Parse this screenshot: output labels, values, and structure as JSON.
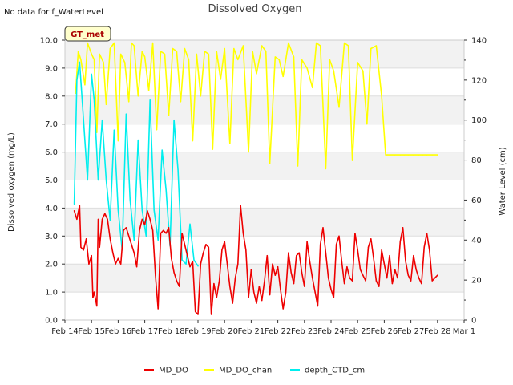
{
  "chart_data": {
    "type": "line",
    "title": "Dissolved Oxygen",
    "note": "No data for f_WaterLevel",
    "badge": "GT_met",
    "xlabel": "",
    "ylabel": "Dissolved oxygen (mg/L)",
    "y2label": "Water Level (cm)",
    "x_ticks": [
      "Feb 14",
      "Feb 15",
      "Feb 16",
      "Feb 17",
      "Feb 18",
      "Feb 19",
      "Feb 20",
      "Feb 21",
      "Feb 22",
      "Feb 23",
      "Feb 24",
      "Feb 25",
      "Feb 26",
      "Feb 27",
      "Feb 28",
      "Mar 1"
    ],
    "y_ticks": [
      "0.0",
      "1.0",
      "2.0",
      "3.0",
      "4.0",
      "5.0",
      "6.0",
      "7.0",
      "8.0",
      "9.0",
      "10.0"
    ],
    "y2_ticks": [
      "0",
      "20",
      "40",
      "60",
      "80",
      "100",
      "120",
      "140"
    ],
    "xlim": [
      0,
      15
    ],
    "ylim": [
      0,
      10
    ],
    "y2lim": [
      0,
      140
    ],
    "grid": true,
    "legend_position": "bottom",
    "colors": {
      "MD_DO": "#ee0000",
      "MD_DO_chan": "#ffff00",
      "depth_CTD_cm": "#00eeee",
      "band": "#f2f2f2"
    },
    "series": [
      {
        "name": "MD_DO",
        "axis": "left",
        "x": [
          0.35,
          0.45,
          0.55,
          0.6,
          0.7,
          0.8,
          0.9,
          1.0,
          1.05,
          1.1,
          1.2,
          1.25,
          1.3,
          1.4,
          1.5,
          1.6,
          1.7,
          1.8,
          1.9,
          2.0,
          2.1,
          2.2,
          2.3,
          2.4,
          2.5,
          2.6,
          2.7,
          2.8,
          2.9,
          3.0,
          3.1,
          3.2,
          3.3,
          3.4,
          3.5,
          3.6,
          3.7,
          3.8,
          3.9,
          4.0,
          4.1,
          4.2,
          4.3,
          4.4,
          4.5,
          4.6,
          4.7,
          4.8,
          4.9,
          5.0,
          5.1,
          5.2,
          5.3,
          5.4,
          5.5,
          5.6,
          5.7,
          5.8,
          5.9,
          6.0,
          6.1,
          6.2,
          6.3,
          6.4,
          6.5,
          6.6,
          6.7,
          6.8,
          6.9,
          7.0,
          7.1,
          7.2,
          7.3,
          7.4,
          7.5,
          7.6,
          7.7,
          7.8,
          7.9,
          8.0,
          8.1,
          8.2,
          8.3,
          8.4,
          8.5,
          8.6,
          8.7,
          8.8,
          8.9,
          9.0,
          9.1,
          9.2,
          9.3,
          9.4,
          9.5,
          9.6,
          9.7,
          9.8,
          9.9,
          10.0,
          10.1,
          10.2,
          10.3,
          10.4,
          10.5,
          10.6,
          10.7,
          10.8,
          10.9,
          11.0,
          11.1,
          11.2,
          11.3,
          11.4,
          11.5,
          11.6,
          11.7,
          11.8,
          11.9,
          12.0,
          12.1,
          12.2,
          12.3,
          12.4,
          12.5,
          12.6,
          12.7,
          12.8,
          12.9,
          13.0,
          13.1,
          13.2,
          13.3,
          13.4,
          13.5,
          13.6,
          13.7,
          13.8,
          13.9,
          14.0
        ],
        "values": [
          3.9,
          3.6,
          4.1,
          2.6,
          2.5,
          2.9,
          2.0,
          2.3,
          0.8,
          1.0,
          0.5,
          3.6,
          2.6,
          3.6,
          3.8,
          3.6,
          2.9,
          2.4,
          2.0,
          2.2,
          2.0,
          3.2,
          3.3,
          3.0,
          2.7,
          2.4,
          1.9,
          3.2,
          3.6,
          3.4,
          3.9,
          3.6,
          3.2,
          1.6,
          0.4,
          3.1,
          3.2,
          3.1,
          3.3,
          2.2,
          1.7,
          1.4,
          1.2,
          3.1,
          2.7,
          2.3,
          1.9,
          2.1,
          0.3,
          0.2,
          2.0,
          2.4,
          2.7,
          2.6,
          0.2,
          1.3,
          0.8,
          1.4,
          2.5,
          2.8,
          2.0,
          1.2,
          0.6,
          1.5,
          2.0,
          4.1,
          3.1,
          2.5,
          0.8,
          1.8,
          1.0,
          0.6,
          1.2,
          0.7,
          1.4,
          2.3,
          0.9,
          2.0,
          1.6,
          1.9,
          1.1,
          0.4,
          1.0,
          2.4,
          1.7,
          1.3,
          2.3,
          2.4,
          1.7,
          1.2,
          2.8,
          2.1,
          1.5,
          1.0,
          0.5,
          2.7,
          3.3,
          2.4,
          1.5,
          1.1,
          0.8,
          2.7,
          3.0,
          2.1,
          1.3,
          1.9,
          1.5,
          1.4,
          3.1,
          2.5,
          1.8,
          1.6,
          1.4,
          2.6,
          2.9,
          2.2,
          1.4,
          1.2,
          2.5,
          2.0,
          1.5,
          2.3,
          1.3,
          1.8,
          1.5,
          2.8,
          3.3,
          2.1,
          1.6,
          1.4,
          2.3,
          1.8,
          1.5,
          1.3,
          2.6,
          3.1,
          2.5,
          1.4,
          1.5,
          1.6
        ],
        "note_values": "approximate"
      },
      {
        "name": "MD_DO_chan",
        "axis": "left",
        "x": [
          0.4,
          0.5,
          0.6,
          0.75,
          0.85,
          1.0,
          1.1,
          1.2,
          1.3,
          1.45,
          1.55,
          1.7,
          1.85,
          2.0,
          2.1,
          2.25,
          2.4,
          2.5,
          2.6,
          2.75,
          2.9,
          3.0,
          3.15,
          3.3,
          3.45,
          3.6,
          3.75,
          3.9,
          4.05,
          4.2,
          4.35,
          4.5,
          4.65,
          4.8,
          4.95,
          5.1,
          5.25,
          5.4,
          5.55,
          5.7,
          5.85,
          6.0,
          6.2,
          6.35,
          6.5,
          6.7,
          6.9,
          7.05,
          7.2,
          7.4,
          7.55,
          7.7,
          7.9,
          8.05,
          8.2,
          8.4,
          8.6,
          8.75,
          8.9,
          9.1,
          9.3,
          9.45,
          9.6,
          9.8,
          9.95,
          10.1,
          10.3,
          10.5,
          10.65,
          10.8,
          11.0,
          11.2,
          11.35,
          11.5,
          11.7,
          11.9,
          12.05,
          12.2,
          12.4,
          12.6,
          12.75,
          12.9,
          13.1,
          13.3,
          13.45,
          13.6,
          13.8,
          14.0
        ],
        "values": [
          8.1,
          9.6,
          9.3,
          8.4,
          9.9,
          9.5,
          9.3,
          6.7,
          9.5,
          9.2,
          7.7,
          9.7,
          9.9,
          6.4,
          9.5,
          9.2,
          7.8,
          9.9,
          9.8,
          8.0,
          9.6,
          9.4,
          8.2,
          9.9,
          6.8,
          9.6,
          9.5,
          7.3,
          9.7,
          9.6,
          7.8,
          9.7,
          9.3,
          6.4,
          9.5,
          8.0,
          9.6,
          9.5,
          6.1,
          9.6,
          8.6,
          9.7,
          6.3,
          9.7,
          9.3,
          9.8,
          6.0,
          9.6,
          8.8,
          9.8,
          9.6,
          5.6,
          9.4,
          9.3,
          8.7,
          9.9,
          9.4,
          5.5,
          9.3,
          9.0,
          8.3,
          9.9,
          9.8,
          5.4,
          9.3,
          8.9,
          7.6,
          9.9,
          9.8,
          5.7,
          9.2,
          8.9,
          7.0,
          9.7,
          9.8,
          8.0,
          5.9,
          5.9,
          5.9,
          5.9,
          5.9,
          5.9,
          5.9,
          5.9,
          5.9,
          5.9,
          5.9,
          5.9
        ],
        "note_values": "approximate"
      },
      {
        "name": "depth_CTD_cm",
        "axis": "right",
        "x": [
          0.35,
          0.45,
          0.55,
          0.7,
          0.85,
          1.0,
          1.1,
          1.25,
          1.4,
          1.55,
          1.7,
          1.85,
          2.0,
          2.15,
          2.3,
          2.45,
          2.6,
          2.75,
          2.9,
          3.05,
          3.2,
          3.35,
          3.5,
          3.65,
          3.8,
          3.95,
          4.1,
          4.25,
          4.4,
          4.55,
          4.7,
          4.85,
          5.0
        ],
        "values": [
          58,
          120,
          129,
          100,
          70,
          123,
          110,
          70,
          100,
          70,
          50,
          95,
          55,
          35,
          103,
          60,
          40,
          90,
          55,
          42,
          110,
          55,
          40,
          85,
          65,
          37,
          100,
          75,
          30,
          28,
          48,
          30,
          27
        ],
        "note_values": "approximate"
      }
    ]
  }
}
